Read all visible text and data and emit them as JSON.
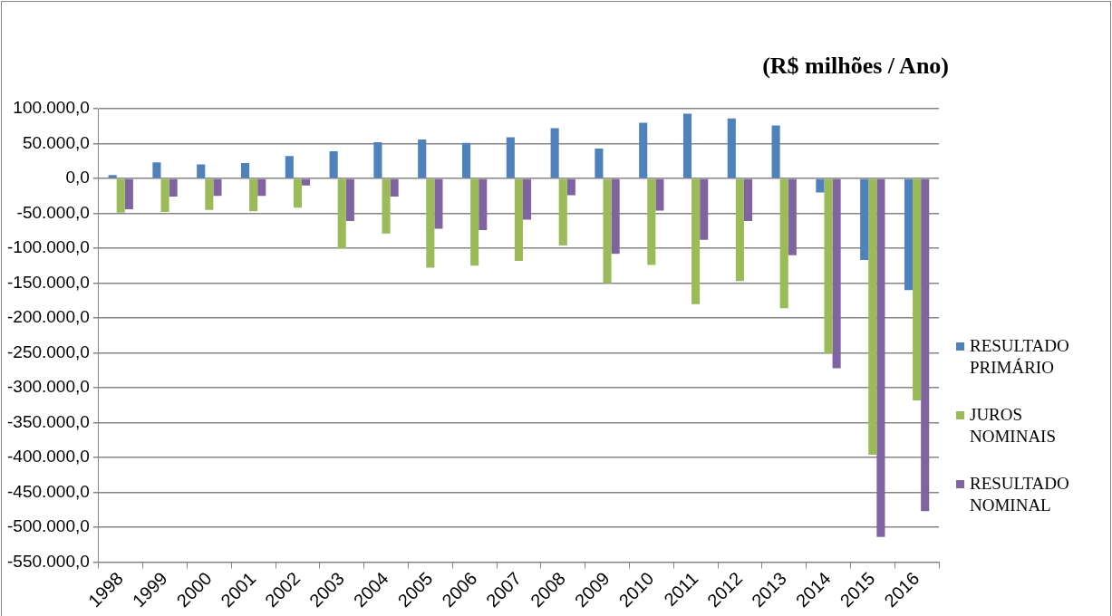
{
  "chart_data": {
    "type": "bar",
    "title": "(R$ milhões / Ano)",
    "categories": [
      "1998",
      "1999",
      "2000",
      "2001",
      "2002",
      "2003",
      "2004",
      "2005",
      "2006",
      "2007",
      "2008",
      "2009",
      "2010",
      "2011",
      "2012",
      "2013",
      "2014",
      "2015",
      "2016"
    ],
    "series": [
      {
        "name": "RESULTADO PRIMÁRIO",
        "color": "#4f81bd",
        "values": [
          5000,
          23000,
          20000,
          22000,
          32000,
          39000,
          52000,
          56000,
          51000,
          59000,
          72000,
          43000,
          80000,
          93000,
          86000,
          76000,
          -20000,
          -117000,
          -160000
        ]
      },
      {
        "name": "JUROS NOMINAIS",
        "color": "#9bbb59",
        "values": [
          -49000,
          -48000,
          -45000,
          -47000,
          -42000,
          -100000,
          -79000,
          -128000,
          -125000,
          -118000,
          -96000,
          -150000,
          -124000,
          -180000,
          -147000,
          -186000,
          -251000,
          -396000,
          -318000
        ]
      },
      {
        "name": "RESULTADO NOMINAL",
        "color": "#8064a2",
        "values": [
          -44000,
          -26000,
          -25000,
          -25000,
          -10000,
          -61000,
          -26000,
          -72000,
          -74000,
          -59000,
          -24000,
          -108000,
          -46000,
          -88000,
          -61000,
          -110000,
          -272000,
          -514000,
          -477000
        ]
      }
    ],
    "ylim": [
      -550000,
      100000
    ],
    "yticks": [
      {
        "value": 100000,
        "label": "100.000,0"
      },
      {
        "value": 50000,
        "label": "50.000,0"
      },
      {
        "value": 0,
        "label": "0,0"
      },
      {
        "value": -50000,
        "label": "-50.000,0"
      },
      {
        "value": -100000,
        "label": "-100.000,0"
      },
      {
        "value": -150000,
        "label": "-150.000,0"
      },
      {
        "value": -200000,
        "label": "-200.000,0"
      },
      {
        "value": -250000,
        "label": "-250.000,0"
      },
      {
        "value": -300000,
        "label": "-300.000,0"
      },
      {
        "value": -350000,
        "label": "-350.000,0"
      },
      {
        "value": -400000,
        "label": "-400.000,0"
      },
      {
        "value": -450000,
        "label": "-450.000,0"
      },
      {
        "value": -500000,
        "label": "-500.000,0"
      },
      {
        "value": -550000,
        "label": "-550.000,0"
      }
    ],
    "grid": "y",
    "legend": "right"
  }
}
